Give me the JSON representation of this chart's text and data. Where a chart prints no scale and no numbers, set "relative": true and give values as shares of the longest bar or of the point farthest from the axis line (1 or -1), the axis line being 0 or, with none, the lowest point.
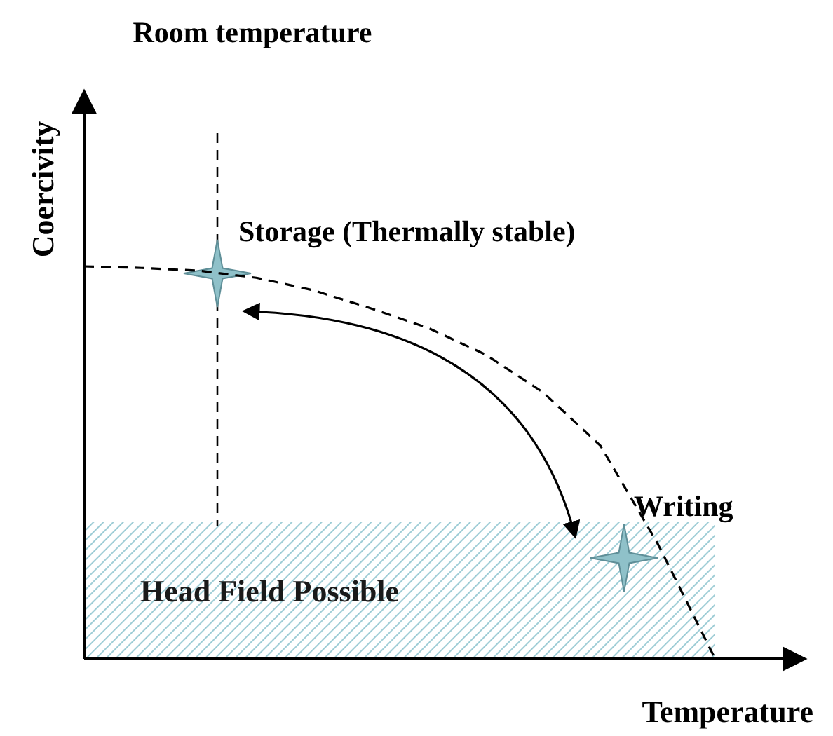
{
  "chart_data": {
    "type": "line",
    "relative": true,
    "xlabel": "Temperature",
    "ylabel": "Coercivity",
    "categories": [
      null,
      null,
      null,
      null,
      null,
      null,
      null,
      null,
      null,
      null,
      null,
      null
    ],
    "series": [
      {
        "color": "#000000",
        "values": [
          1,
          0.996,
          0.989,
          0.971,
          0.939,
          0.893,
          0.843,
          0.775,
          0.679,
          0.543,
          0.293,
          0
        ]
      }
    ],
    "line_style": "dashed",
    "bands": [
      {
        "axis": "y",
        "from": 0,
        "to": 0.35,
        "label": "Head Field Possible",
        "color": "#9fcdd6"
      }
    ],
    "annotations": [
      "Room temperature",
      "Storage (Thermally stable)",
      "Writing"
    ]
  }
}
